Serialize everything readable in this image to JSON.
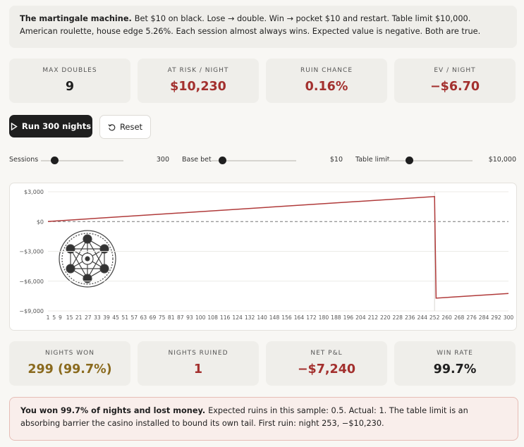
{
  "banner": {
    "bold": "The martingale machine.",
    "text": "Bet $10 on black. Lose → double. Win → pocket $10 and restart. Table limit $10,000. American roulette, house edge 5.26%. Each session almost always wins. Expected value is negative. Both are true."
  },
  "stats_top": [
    {
      "label": "MAX DOUBLES",
      "value": "9",
      "color": "#1f1f1f"
    },
    {
      "label": "AT RISK / NIGHT",
      "value": "$10,230",
      "color": "#a3302e"
    },
    {
      "label": "RUIN CHANCE",
      "value": "0.16%",
      "color": "#a3302e"
    },
    {
      "label": "EV / NIGHT",
      "value": "−$6.70",
      "color": "#a3302e"
    }
  ],
  "buttons": {
    "run": "Run 300 nights",
    "reset": "Reset"
  },
  "sliders": [
    {
      "label": "Sessions",
      "value": "300"
    },
    {
      "label": "Base bet",
      "value": "$10"
    },
    {
      "label": "Table limit",
      "value": "$10,000"
    }
  ],
  "chart": {
    "type": "line",
    "x": [
      1,
      252,
      253,
      300
    ],
    "series": [
      {
        "color": "#b03a3a",
        "values": [
          10,
          2520,
          -7710,
          -7240
        ]
      }
    ],
    "xlim": [
      1,
      300
    ],
    "ylim": [
      -9000,
      3000
    ],
    "xticks": [
      1,
      5,
      9,
      15,
      21,
      27,
      33,
      39,
      45,
      51,
      57,
      63,
      69,
      75,
      81,
      87,
      93,
      100,
      108,
      116,
      124,
      132,
      140,
      148,
      156,
      164,
      172,
      180,
      188,
      196,
      204,
      212,
      220,
      228,
      236,
      244,
      252,
      260,
      268,
      276,
      284,
      292,
      300
    ],
    "yticks": [
      {
        "value": 3000,
        "label": "$3,000"
      },
      {
        "value": 0,
        "label": "$0"
      },
      {
        "value": -3000,
        "label": "−$3,000"
      },
      {
        "value": -6000,
        "label": "−$6,000"
      },
      {
        "value": -9000,
        "label": "−$9,000"
      }
    ],
    "grid": true
  },
  "stats_bottom": [
    {
      "label": "NIGHTS WON",
      "value": "299 (99.7%)",
      "color": "#8a6a1e"
    },
    {
      "label": "NIGHTS RUINED",
      "value": "1",
      "color": "#a3302e"
    },
    {
      "label": "NET P&L",
      "value": "−$7,240",
      "color": "#a3302e"
    },
    {
      "label": "WIN RATE",
      "value": "99.7%",
      "color": "#1f1f1f"
    }
  ],
  "note": {
    "bold": "You won 99.7% of nights and lost money.",
    "text": "Expected ruins in this sample: 0.5. Actual: 1. The table limit is an absorbing barrier the casino installed to bound its own tail. First ruin: night 253, −$10,230."
  }
}
